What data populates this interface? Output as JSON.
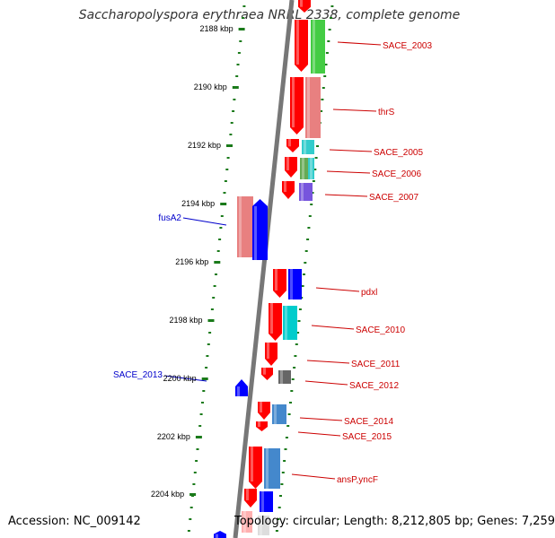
{
  "title": "Saccharopolyspora erythraea NRRL 2338, complete genome",
  "footer": {
    "accession": "Accession: NC_009142",
    "topology": "Topology: circular; Length: 8,212,805 bp; Genes: 7,259"
  },
  "colors": {
    "backbone": "#777777",
    "tick": "#1a7a1a",
    "forward_cds": "#ff0000",
    "label_red": "#cc0000",
    "label_blue": "#0000cc"
  },
  "ruler": [
    {
      "label": "2188 kbp"
    },
    {
      "label": "2190 kbp"
    },
    {
      "label": "2192 kbp"
    },
    {
      "label": "2194 kbp"
    },
    {
      "label": "2196 kbp"
    },
    {
      "label": "2198 kbp"
    },
    {
      "label": "2200 kbp"
    },
    {
      "label": "2202 kbp"
    },
    {
      "label": "2204 kbp"
    }
  ],
  "gene_labels": [
    {
      "text": "SACE_2003",
      "color": "red"
    },
    {
      "text": "thrS",
      "color": "red"
    },
    {
      "text": "SACE_2005",
      "color": "red"
    },
    {
      "text": "SACE_2006",
      "color": "red"
    },
    {
      "text": "SACE_2007",
      "color": "red"
    },
    {
      "text": "fusA2",
      "color": "blue"
    },
    {
      "text": "pdxl",
      "color": "red"
    },
    {
      "text": "SACE_2010",
      "color": "red"
    },
    {
      "text": "SACE_2011",
      "color": "red"
    },
    {
      "text": "SACE_2012",
      "color": "red"
    },
    {
      "text": "SACE_2013",
      "color": "blue"
    },
    {
      "text": "SACE_2014",
      "color": "red"
    },
    {
      "text": "SACE_2015",
      "color": "red"
    },
    {
      "text": "ansP,yncF",
      "color": "red"
    }
  ]
}
